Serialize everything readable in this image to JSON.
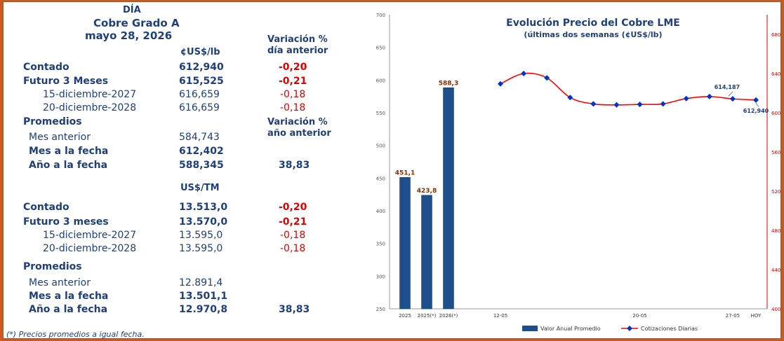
{
  "table": {
    "dia": "DÍA",
    "title": "Cobre Grado A",
    "date": "mayo 28, 2026",
    "var_header_1": "Variación %",
    "var_header_2": "día anterior",
    "unit_clb": "¢US$/lb",
    "var_year_1": "Variación %",
    "var_year_2": "año anterior",
    "unit_tm": "US$/TM",
    "lb_rows": [
      {
        "label": "Contado",
        "value": "612,940",
        "var": "-0,20"
      },
      {
        "label": "Futuro 3 Meses",
        "value": "615,525",
        "var": "-0,21"
      },
      {
        "label": "15-diciembre-2027",
        "value": "616,659",
        "var": "-0,18"
      },
      {
        "label": "20-diciembre-2028",
        "value": "616,659",
        "var": "-0,18"
      }
    ],
    "lb_promedios": "Promedios",
    "lb_avg": [
      {
        "label": "Mes anterior",
        "value": "584,743",
        "var": ""
      },
      {
        "label": "Mes a la fecha",
        "value": "612,402",
        "var": ""
      },
      {
        "label": "Año a la fecha",
        "value": "588,345",
        "var": "38,83"
      }
    ],
    "tm_rows": [
      {
        "label": "Contado",
        "value": "13.513,0",
        "var": "-0,20"
      },
      {
        "label": "Futuro 3 meses",
        "value": "13.570,0",
        "var": "-0,21"
      },
      {
        "label": "15-diciembre-2027",
        "value": "13.595,0",
        "var": "-0,18"
      },
      {
        "label": "20-diciembre-2028",
        "value": "13.595,0",
        "var": "-0,18"
      }
    ],
    "tm_promedios": "Promedios",
    "tm_avg": [
      {
        "label": "Mes anterior",
        "value": "12.891,4",
        "var": ""
      },
      {
        "label": "Mes a la fecha",
        "value": "13.501,1",
        "var": ""
      },
      {
        "label": "Año a la fecha",
        "value": "12.970,8",
        "var": "38,83"
      }
    ],
    "footnote": "(*) Precios promedios a igual fecha."
  },
  "colors": {
    "text_blue": "#1f3f7a",
    "negative_red": "#e00000",
    "bar_fill": "#1f4e8c",
    "line_red": "#ff0000",
    "marker_blue": "#0033cc",
    "value_label": "#8b2c00"
  },
  "chart_data": {
    "type": "bar+line",
    "title": "Evolución Precio del Cobre LME",
    "subtitle": "(últimas dos semanas (¢US$/lb)",
    "bars": {
      "name": "Valor Anual Promedio",
      "categories": [
        "2025",
        "2025(*)",
        "2026(*)"
      ],
      "values": [
        451.1,
        423.8,
        588.3
      ],
      "labels": [
        "451,1",
        "423,8",
        "588,3"
      ],
      "y_axis": "left",
      "ylim": [
        250,
        700
      ],
      "yticks": [
        250,
        300,
        350,
        400,
        450,
        500,
        550,
        600,
        650,
        700
      ]
    },
    "line": {
      "name": "Cotizaciones Diarias",
      "x_labels": [
        "12-05",
        "",
        "",
        "",
        "",
        "",
        "20-05",
        "",
        "",
        "",
        "27-05",
        "HOY"
      ],
      "values": [
        629.5,
        640.0,
        635.5,
        615.5,
        609.0,
        608.0,
        608.5,
        609.0,
        614.5,
        616.5,
        614.187,
        612.94
      ],
      "y_axis": "right",
      "ylim": [
        400,
        700
      ],
      "yticks": [
        400,
        440,
        480,
        520,
        560,
        600,
        640,
        680
      ],
      "annotations": [
        {
          "index": 10,
          "text": "614,187"
        },
        {
          "index": 11,
          "text": "612,940"
        }
      ]
    },
    "legend": [
      "Valor Anual Promedio",
      "Cotizaciones Diarias"
    ],
    "legend_position": "bottom"
  }
}
